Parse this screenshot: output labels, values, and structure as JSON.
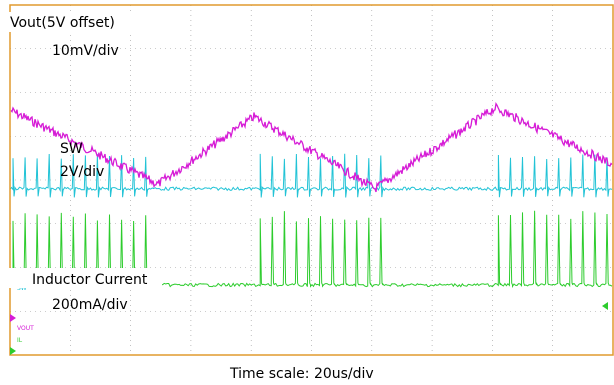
{
  "chart_data": {
    "type": "line",
    "title": "",
    "xlabel": "Time scale: 20us/div",
    "ylabel": "",
    "x_divisions": 10,
    "y_divisions": 8,
    "grid": true,
    "series": [
      {
        "name": "Vout(5V offset)",
        "scale": "10mV/div",
        "color": "#d61cd6",
        "x_peaks_div": [
          0.0,
          2.45,
          4.05,
          6.05,
          8.05,
          10.0
        ],
        "y_peaks_div": [
          2.4,
          4.1,
          2.55,
          4.2,
          2.35,
          3.65
        ]
      },
      {
        "name": "SW",
        "scale": "2V/div",
        "color": "#22c3d6",
        "baseline_div": 4.2,
        "burst_x_div": [
          [
            0.05,
            2.4
          ],
          [
            4.15,
            6.2
          ],
          [
            8.1,
            10.0
          ]
        ],
        "pulse_period_div": 0.2,
        "pulse_height_div": 0.8
      },
      {
        "name": "Inductor Current",
        "scale": "200mA/div",
        "color": "#2dcc2d",
        "baseline_div": 6.4,
        "burst_x_div": [
          [
            0.05,
            2.4
          ],
          [
            4.15,
            6.2
          ],
          [
            8.1,
            10.0
          ]
        ],
        "pulse_period_div": 0.2,
        "pulse_height_div": 1.7
      }
    ],
    "annotations": [
      "Vout(5V offset)",
      "10mV/div",
      "SW",
      "2V/div",
      "Inductor Current",
      "200mA/div"
    ],
    "channel_markers": [
      "SW",
      "VOUT",
      "IL"
    ]
  },
  "colors": {
    "grid_border": "#e09a2e",
    "grid_line": "#9a9a9a",
    "vout": "#d61cd6",
    "sw": "#22c3d6",
    "il": "#2dcc2d"
  }
}
